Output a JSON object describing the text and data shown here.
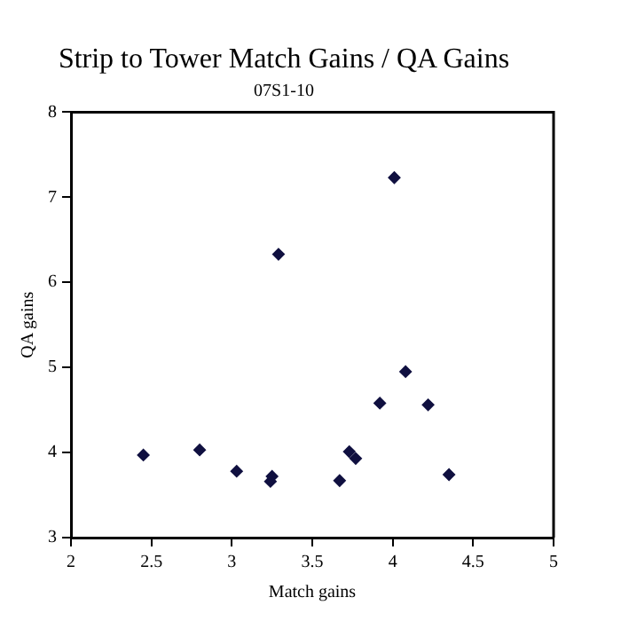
{
  "chart_data": {
    "type": "scatter",
    "title": "Strip to Tower Match Gains / QA Gains",
    "subtitle": "07S1-10",
    "xlabel": "Match gains",
    "ylabel": "QA gains",
    "series": [
      {
        "color": "#101040",
        "x": [
          2.45,
          2.8,
          3.03,
          3.25,
          3.24,
          3.29,
          3.67,
          3.73,
          3.77,
          3.92,
          4.01,
          4.08,
          4.22,
          4.35
        ],
        "values": [
          3.97,
          4.03,
          3.78,
          3.72,
          3.66,
          6.33,
          3.67,
          4.01,
          3.93,
          4.58,
          7.23,
          4.95,
          4.56,
          3.74
        ]
      }
    ],
    "xlim": [
      2,
      5
    ],
    "xticks": [
      2,
      2.5,
      3,
      3.5,
      4,
      4.5,
      5
    ],
    "ylim": [
      3,
      8
    ],
    "yticks": [
      3,
      4,
      5,
      6,
      7,
      8
    ],
    "grid": false,
    "legend": false,
    "marker": "diamond"
  }
}
